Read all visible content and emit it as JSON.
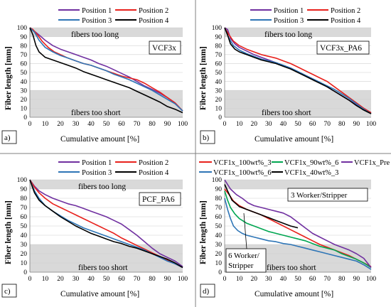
{
  "chart_data": [
    {
      "type": "line",
      "panel_letter": "a)",
      "box_label": "VCF3x",
      "zone_top_label": "fibers too long",
      "zone_bottom_label": "fibers too short",
      "xlabel": "Cumulative amount [%]",
      "ylabel": "Fiber length [mm]",
      "xlim": [
        0,
        100
      ],
      "ylim": [
        0,
        100
      ],
      "x_ticks": [
        0,
        10,
        20,
        30,
        40,
        50,
        60,
        70,
        80,
        90,
        100
      ],
      "y_ticks": [
        0,
        10,
        20,
        30,
        40,
        50,
        60,
        70,
        80,
        90,
        100
      ],
      "bands": [
        {
          "from": 0,
          "to": 30
        },
        {
          "from": 90,
          "to": 100
        }
      ],
      "grid": true,
      "legend_position": "top",
      "series": [
        {
          "name": "Position 1",
          "color": "#7030a0",
          "x": [
            0,
            3,
            6,
            10,
            15,
            20,
            25,
            30,
            35,
            40,
            45,
            50,
            55,
            60,
            65,
            70,
            75,
            80,
            85,
            90,
            95,
            100
          ],
          "y": [
            100,
            96,
            92,
            86,
            80,
            76,
            73,
            70,
            67,
            64,
            60,
            57,
            53,
            49,
            45,
            40,
            35,
            31,
            27,
            22,
            16,
            7
          ]
        },
        {
          "name": "Position 2",
          "color": "#e8211c",
          "x": [
            0,
            2,
            5,
            8,
            12,
            16,
            20,
            25,
            30,
            35,
            40,
            45,
            50,
            55,
            60,
            65,
            70,
            75,
            80,
            85,
            90,
            95,
            100
          ],
          "y": [
            100,
            98,
            92,
            85,
            78,
            73,
            70,
            66,
            63,
            60,
            58,
            55,
            52,
            49,
            46,
            44,
            42,
            38,
            33,
            28,
            22,
            16,
            7
          ]
        },
        {
          "name": "Position 3",
          "color": "#2e75b6",
          "x": [
            0,
            3,
            6,
            10,
            15,
            20,
            25,
            30,
            35,
            40,
            45,
            50,
            55,
            60,
            65,
            70,
            75,
            80,
            85,
            90,
            95,
            100
          ],
          "y": [
            100,
            95,
            86,
            78,
            73,
            69,
            66,
            63,
            60,
            58,
            55,
            52,
            48,
            45,
            42,
            38,
            34,
            30,
            25,
            20,
            15,
            7
          ]
        },
        {
          "name": "Position 4",
          "color": "#000000",
          "x": [
            0,
            2,
            4,
            6,
            8,
            10,
            15,
            20,
            25,
            30,
            35,
            40,
            45,
            50,
            55,
            60,
            65,
            70,
            75,
            80,
            85,
            90,
            95,
            100
          ],
          "y": [
            100,
            92,
            80,
            73,
            70,
            67,
            64,
            61,
            58,
            55,
            51,
            48,
            45,
            42,
            39,
            36,
            33,
            29,
            25,
            21,
            17,
            12,
            9,
            5
          ]
        }
      ]
    },
    {
      "type": "line",
      "panel_letter": "b)",
      "box_label": "VCF3x_PA6",
      "zone_top_label": "fibers too long",
      "zone_bottom_label": "fibers too short",
      "xlabel": "Cumulative amount [%]",
      "ylabel": "Fiber length [mm]",
      "xlim": [
        0,
        100
      ],
      "ylim": [
        0,
        100
      ],
      "x_ticks": [
        0,
        10,
        20,
        30,
        40,
        50,
        60,
        70,
        80,
        90,
        100
      ],
      "y_ticks": [
        0,
        10,
        20,
        30,
        40,
        50,
        60,
        70,
        80,
        90,
        100
      ],
      "bands": [
        {
          "from": 0,
          "to": 30
        },
        {
          "from": 90,
          "to": 100
        }
      ],
      "grid": true,
      "legend_position": "top",
      "series": [
        {
          "name": "Position 1",
          "color": "#7030a0",
          "x": [
            0,
            2,
            4,
            7,
            10,
            15,
            20,
            25,
            30,
            35,
            40,
            45,
            50,
            55,
            60,
            65,
            70,
            75,
            80,
            85,
            90,
            95,
            100
          ],
          "y": [
            100,
            98,
            88,
            82,
            78,
            74,
            70,
            67,
            64,
            61,
            58,
            55,
            51,
            47,
            43,
            39,
            34,
            29,
            24,
            19,
            14,
            10,
            5
          ]
        },
        {
          "name": "Position 2",
          "color": "#e8211c",
          "x": [
            0,
            3,
            6,
            10,
            15,
            20,
            25,
            30,
            35,
            40,
            45,
            50,
            55,
            60,
            65,
            70,
            75,
            80,
            85,
            90,
            95,
            100
          ],
          "y": [
            100,
            92,
            85,
            80,
            76,
            73,
            70,
            68,
            66,
            63,
            60,
            56,
            52,
            48,
            44,
            40,
            34,
            28,
            22,
            16,
            10,
            5
          ]
        },
        {
          "name": "Position 3",
          "color": "#2e75b6",
          "x": [
            0,
            3,
            6,
            10,
            15,
            20,
            25,
            30,
            35,
            40,
            45,
            50,
            55,
            60,
            65,
            70,
            75,
            80,
            85,
            90,
            95,
            100
          ],
          "y": [
            100,
            88,
            80,
            75,
            71,
            68,
            65,
            63,
            61,
            58,
            55,
            51,
            47,
            43,
            39,
            35,
            31,
            26,
            21,
            15,
            9,
            4
          ]
        },
        {
          "name": "Position 4",
          "color": "#000000",
          "x": [
            0,
            2,
            4,
            7,
            10,
            15,
            20,
            25,
            30,
            35,
            40,
            45,
            50,
            55,
            60,
            65,
            70,
            75,
            80,
            85,
            90,
            95,
            100
          ],
          "y": [
            100,
            92,
            82,
            76,
            73,
            70,
            67,
            64,
            62,
            60,
            57,
            54,
            50,
            46,
            42,
            38,
            34,
            29,
            24,
            19,
            13,
            8,
            4
          ]
        }
      ]
    },
    {
      "type": "line",
      "panel_letter": "c)",
      "box_label": "PCF_PA6",
      "zone_top_label": "fibers too long",
      "zone_bottom_label": "fibers too short",
      "xlabel": "Cumulative amount [%]",
      "ylabel": "Fiber length [mm]",
      "xlim": [
        0,
        100
      ],
      "ylim": [
        0,
        100
      ],
      "x_ticks": [
        0,
        10,
        20,
        30,
        40,
        50,
        60,
        70,
        80,
        90,
        100
      ],
      "y_ticks": [
        0,
        10,
        20,
        30,
        40,
        50,
        60,
        70,
        80,
        90,
        100
      ],
      "bands": [
        {
          "from": 0,
          "to": 30
        },
        {
          "from": 90,
          "to": 100
        }
      ],
      "grid": true,
      "legend_position": "top",
      "series": [
        {
          "name": "Position 1",
          "color": "#7030a0",
          "x": [
            0,
            3,
            6,
            10,
            15,
            20,
            25,
            30,
            35,
            40,
            45,
            50,
            55,
            60,
            65,
            70,
            75,
            80,
            85,
            90,
            95,
            100
          ],
          "y": [
            100,
            93,
            88,
            84,
            80,
            77,
            74,
            72,
            69,
            66,
            63,
            60,
            56,
            52,
            46,
            40,
            33,
            26,
            20,
            16,
            12,
            6
          ]
        },
        {
          "name": "Position 2",
          "color": "#e8211c",
          "x": [
            0,
            3,
            6,
            10,
            15,
            20,
            25,
            30,
            35,
            40,
            45,
            50,
            55,
            60,
            65,
            70,
            75,
            80,
            85,
            90,
            95,
            100
          ],
          "y": [
            100,
            92,
            86,
            80,
            74,
            70,
            66,
            62,
            58,
            54,
            50,
            46,
            42,
            37,
            33,
            29,
            25,
            21,
            17,
            13,
            9,
            5
          ]
        },
        {
          "name": "Position 3",
          "color": "#2e75b6",
          "x": [
            0,
            3,
            6,
            10,
            15,
            20,
            25,
            30,
            35,
            40,
            45,
            50,
            55,
            60,
            65,
            70,
            75,
            80,
            85,
            90,
            95,
            100
          ],
          "y": [
            100,
            88,
            80,
            72,
            66,
            61,
            56,
            52,
            48,
            45,
            42,
            39,
            36,
            33,
            30,
            27,
            24,
            20,
            16,
            12,
            9,
            5
          ]
        },
        {
          "name": "Position 4",
          "color": "#000000",
          "x": [
            0,
            3,
            6,
            10,
            15,
            20,
            25,
            30,
            35,
            40,
            45,
            50,
            55,
            60,
            65,
            70,
            75,
            80,
            85,
            90,
            95,
            100
          ],
          "y": [
            100,
            86,
            78,
            72,
            66,
            60,
            55,
            50,
            46,
            42,
            39,
            36,
            33,
            31,
            28,
            26,
            23,
            20,
            17,
            14,
            10,
            5
          ]
        }
      ]
    },
    {
      "type": "line",
      "panel_letter": "d)",
      "zone_bottom_label": "fibers too short",
      "xlabel": "Cumulative amount [%]",
      "ylabel": "Fiber length [mm]",
      "xlim": [
        0,
        100
      ],
      "ylim": [
        0,
        100
      ],
      "x_ticks": [
        0,
        10,
        20,
        30,
        40,
        50,
        60,
        70,
        80,
        90,
        100
      ],
      "y_ticks": [
        0,
        10,
        20,
        30,
        40,
        50,
        60,
        70,
        80,
        90,
        100
      ],
      "bands": [
        {
          "from": 0,
          "to": 30
        },
        {
          "from": 90,
          "to": 100
        }
      ],
      "grid": true,
      "legend_position": "top",
      "annotations": [
        {
          "text_lines": [
            "3 Worker/Stripper"
          ]
        },
        {
          "text_lines": [
            "6 Worker/",
            "Stripper"
          ]
        }
      ],
      "series": [
        {
          "name": "VCF1x_100wt%_3",
          "color": "#e8211c",
          "x": [
            0,
            3,
            6,
            10,
            15,
            20,
            25,
            30,
            35,
            40,
            45,
            50,
            55,
            60,
            65,
            70,
            75,
            80,
            85,
            90,
            95,
            100
          ],
          "y": [
            90,
            84,
            77,
            72,
            68,
            65,
            62,
            58,
            54,
            50,
            46,
            42,
            38,
            34,
            30,
            27,
            24,
            21,
            18,
            14,
            10,
            6
          ]
        },
        {
          "name": "VCF1x_90wt%_6",
          "color": "#00a651",
          "x": [
            0,
            2,
            4,
            7,
            10,
            15,
            20,
            25,
            30,
            35,
            40,
            45,
            50,
            55,
            60,
            65,
            70,
            75,
            80,
            85,
            90,
            95,
            100
          ],
          "y": [
            88,
            78,
            70,
            63,
            58,
            53,
            50,
            47,
            44,
            42,
            40,
            38,
            36,
            34,
            31,
            28,
            26,
            24,
            20,
            17,
            14,
            10,
            5
          ]
        },
        {
          "name": "VCF1x_Pre",
          "color": "#7030a0",
          "x": [
            0,
            2,
            4,
            8,
            12,
            16,
            20,
            25,
            30,
            35,
            40,
            45,
            50,
            55,
            60,
            65,
            70,
            75,
            80,
            85,
            90,
            95,
            100
          ],
          "y": [
            100,
            95,
            90,
            84,
            80,
            75,
            72,
            70,
            68,
            66,
            64,
            60,
            54,
            48,
            42,
            38,
            34,
            30,
            27,
            24,
            20,
            15,
            5
          ]
        },
        {
          "name": "VCF1x_100wt%_6",
          "color": "#2e75b6",
          "x": [
            0,
            2,
            4,
            6,
            9,
            12,
            15,
            20,
            25,
            30,
            35,
            40,
            45,
            50,
            55,
            60,
            65,
            70,
            75,
            80,
            85,
            90,
            95,
            100
          ],
          "y": [
            80,
            68,
            58,
            50,
            45,
            42,
            40,
            38,
            36,
            34,
            33,
            31,
            30,
            28,
            26,
            24,
            22,
            20,
            18,
            16,
            14,
            12,
            8,
            3
          ]
        },
        {
          "name": "VCF1x_40wt%_3",
          "color": "#000000",
          "x": [
            0,
            2,
            5,
            10,
            15,
            20,
            25,
            30,
            35,
            40,
            45,
            50
          ],
          "y": [
            95,
            88,
            78,
            71,
            68,
            65,
            62,
            59,
            56,
            53,
            50,
            48
          ]
        }
      ]
    }
  ]
}
